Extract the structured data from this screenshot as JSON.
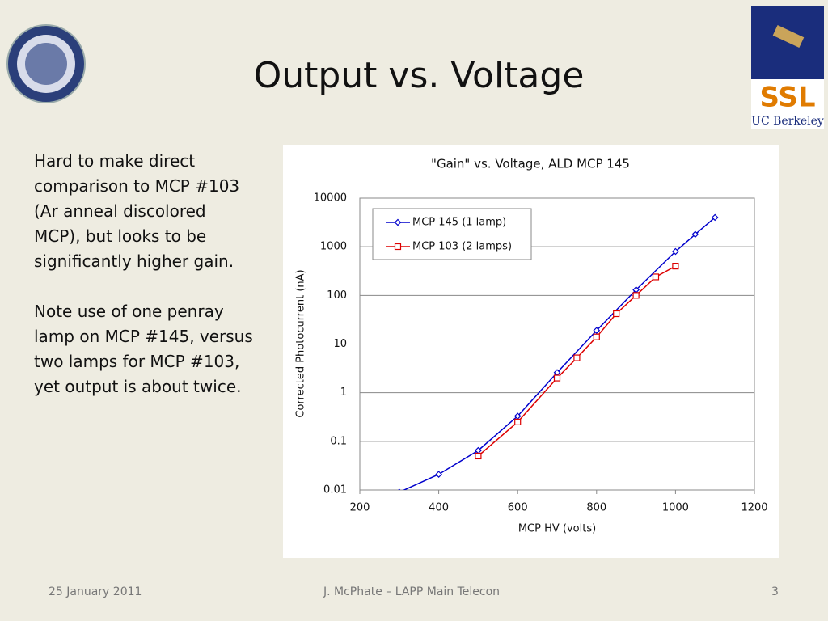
{
  "slide": {
    "title": "Output vs. Voltage",
    "paragraphs": [
      [
        "Hard to make direct",
        "comparison to MCP #103",
        "(Ar anneal discolored",
        "MCP), but looks to be",
        "significantly higher gain."
      ],
      [
        "Note use of one penray",
        "lamp on MCP #145, versus",
        "two lamps for MCP #103,",
        "yet output is about twice."
      ]
    ],
    "footer": {
      "date": "25 January 2011",
      "center": "J. McPhate – LAPP Main Telecon",
      "page": "3"
    },
    "logo_text": "SSL",
    "logo_subtext": "UC Berkeley"
  },
  "chart_data": {
    "type": "line",
    "title": "\"Gain\" vs. Voltage, ALD MCP 145",
    "xlabel": "MCP HV (volts)",
    "ylabel": "Corrected Photocurrent (nA)",
    "xlim": [
      200,
      1200
    ],
    "xticks": [
      200,
      400,
      600,
      800,
      1000,
      1200
    ],
    "ylim": [
      0.01,
      10000
    ],
    "yticks": [
      10000,
      1000,
      100,
      10,
      1,
      0.1,
      0.01
    ],
    "yscale": "log",
    "grid": true,
    "legend": "upper left",
    "series": [
      {
        "name": "MCP 145 (1 lamp)",
        "color": "#0000cc",
        "marker": "diamond",
        "x": [
          300,
          400,
          500,
          600,
          700,
          800,
          900,
          1000,
          1050,
          1100
        ],
        "values": [
          0.009,
          0.021,
          0.065,
          0.33,
          2.6,
          19,
          130,
          800,
          1800,
          4000
        ]
      },
      {
        "name": "MCP 103 (2 lamps)",
        "color": "#dd0000",
        "marker": "square",
        "x": [
          500,
          600,
          700,
          750,
          800,
          850,
          900,
          950,
          1000
        ],
        "values": [
          0.05,
          0.25,
          2.0,
          5.2,
          14,
          42,
          100,
          240,
          400
        ]
      }
    ]
  }
}
